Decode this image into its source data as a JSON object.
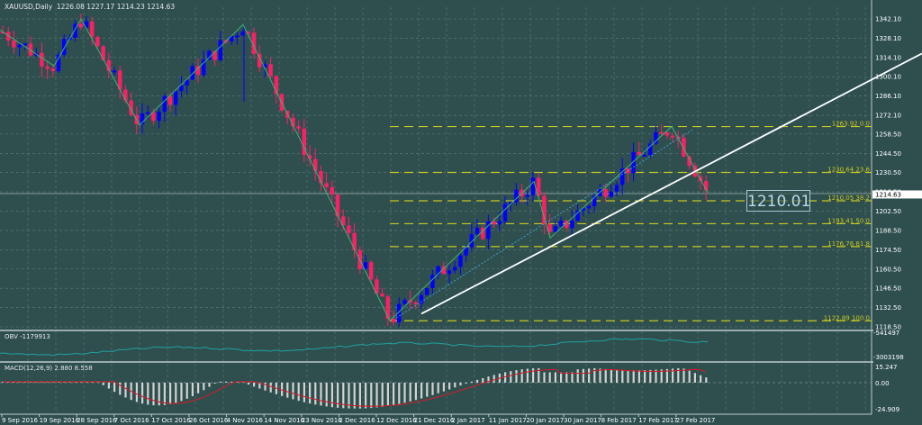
{
  "header": {
    "symbol": "XAUUSD,Daily",
    "ohlc": "1226.08 1227.17 1214.23 1214.63",
    "title": "XAUUSD,Daily  1226.08 1227.17 1214.23 1214.63"
  },
  "price_callout": "1210.01",
  "current_price_label": "1214.63",
  "colors": {
    "background": "#2f4f4f",
    "grid": "#8aa0a0",
    "bull_candle": "#0000ff",
    "bear_candle": "#ff1e64",
    "zigzag": "#3cb371",
    "trendline": "#ffffff",
    "fibonacci": "#c8c81e",
    "obv_line": "#20a0a0",
    "macd_hist": "#d3d3d3",
    "macd_signal": "#c8202a",
    "axis_text": "#ffffff"
  },
  "indicators": {
    "obv_title": "OBV -1179913",
    "macd_title": "MACD(12,26,9) 2.880 8.558"
  },
  "chart_data": [
    {
      "type": "candlestick",
      "title": "XAUUSD,Daily",
      "ylim": [
        1111.5,
        1349.1
      ],
      "price_ticks": [
        "1342.10",
        "1328.10",
        "1314.10",
        "1300.10",
        "1286.10",
        "1272.10",
        "1258.50",
        "1244.50",
        "1230.50",
        "1216.50",
        "1202.50",
        "1188.50",
        "1174.50",
        "1160.50",
        "1146.50",
        "1132.50",
        "1118.50"
      ],
      "x_ticks": [
        "9 Sep 2016",
        "19 Sep 2016",
        "28 Sep 2016",
        "7 Oct 2016",
        "17 Oct 2016",
        "26 Oct 2016",
        "4 Nov 2016",
        "14 Nov 2016",
        "23 Nov 2016",
        "2 Dec 2016",
        "12 Dec 2016",
        "21 Dec 2016",
        "2 Jan 2017",
        "11 Jan 2017",
        "20 Jan 2017",
        "30 Jan 2017",
        "8 Feb 2017",
        "17 Feb 2017",
        "27 Feb 2017"
      ],
      "last_ohlc": {
        "open": 1226.08,
        "high": 1227.17,
        "low": 1214.23,
        "close": 1214.63
      },
      "fibonacci_levels": [
        {
          "price": 1263.92,
          "label": "1263.92 0.0"
        },
        {
          "price": 1230.64,
          "label": "1230.64 23.6"
        },
        {
          "price": 1210.05,
          "label": "1210.05 38.2"
        },
        {
          "price": 1193.41,
          "label": "1193.41 50.0"
        },
        {
          "price": 1176.76,
          "label": "1176.76 61.8"
        },
        {
          "price": 1122.89,
          "label": "1122.89 100.0"
        }
      ],
      "zigzag_points": [
        [
          0,
          1334
        ],
        [
          60,
          1308
        ],
        [
          90,
          1342
        ],
        [
          155,
          1265
        ],
        [
          270,
          1338
        ],
        [
          433,
          1123
        ],
        [
          593,
          1224
        ],
        [
          611,
          1183
        ],
        [
          746,
          1264
        ],
        [
          786,
          1216
        ]
      ],
      "trendline": {
        "from": [
          468,
          1128
        ],
        "to": [
          1024,
          1317
        ]
      },
      "annotation": "1210.01"
    },
    {
      "type": "line",
      "title": "OBV -1179913",
      "y_ticks": [
        "-541497",
        "-3003198"
      ]
    },
    {
      "type": "bar",
      "title": "MACD(12,26,9) 2.880 8.558",
      "y_ticks": [
        "15.247",
        "0.00",
        "-24.909"
      ],
      "series": [
        {
          "name": "MACD",
          "value": 2.88
        },
        {
          "name": "Signal",
          "value": 8.558
        }
      ]
    }
  ]
}
